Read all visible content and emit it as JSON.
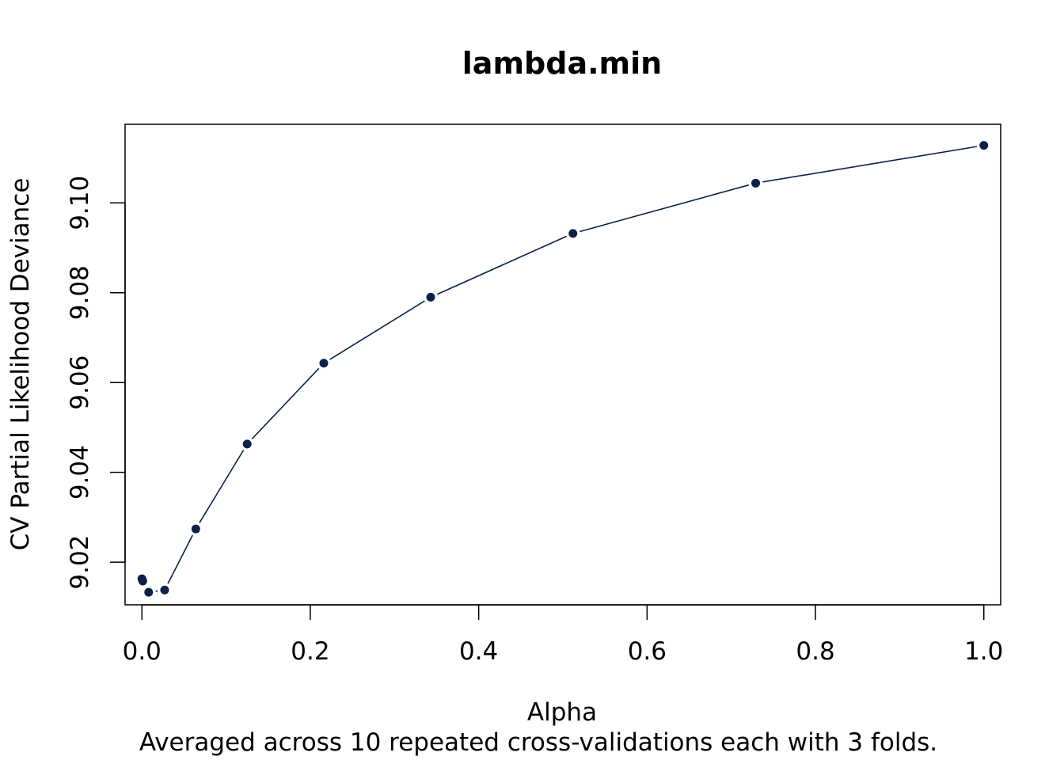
{
  "chart_data": {
    "type": "line",
    "title": "lambda.min",
    "xlabel": "Alpha",
    "ylabel": "CV Partial Likelihood Deviance",
    "subtitle": "Averaged across 10 repeated cross-validations each with 3 folds.",
    "xlim": [
      -0.02,
      1.02
    ],
    "ylim": [
      9.0105,
      9.1175
    ],
    "x_ticks": [
      {
        "value": 0.0,
        "label": "0.0"
      },
      {
        "value": 0.2,
        "label": "0.2"
      },
      {
        "value": 0.4,
        "label": "0.4"
      },
      {
        "value": 0.6,
        "label": "0.6"
      },
      {
        "value": 0.8,
        "label": "0.8"
      },
      {
        "value": 1.0,
        "label": "1.0"
      }
    ],
    "y_ticks": [
      {
        "value": 9.02,
        "label": "9.02"
      },
      {
        "value": 9.04,
        "label": "9.04"
      },
      {
        "value": 9.06,
        "label": "9.06"
      },
      {
        "value": 9.08,
        "label": "9.08"
      },
      {
        "value": 9.1,
        "label": "9.10"
      }
    ],
    "grid": false,
    "colors": {
      "series": "#0b2147"
    },
    "series": [
      {
        "x": [
          0.0,
          0.001,
          0.008,
          0.027,
          0.064,
          0.125,
          0.216,
          0.343,
          0.512,
          0.729,
          1.0
        ],
        "y": [
          9.0163,
          9.0158,
          9.0133,
          9.0138,
          9.0274,
          9.0463,
          9.0643,
          9.079,
          9.0932,
          9.1044,
          9.1128
        ]
      }
    ]
  }
}
